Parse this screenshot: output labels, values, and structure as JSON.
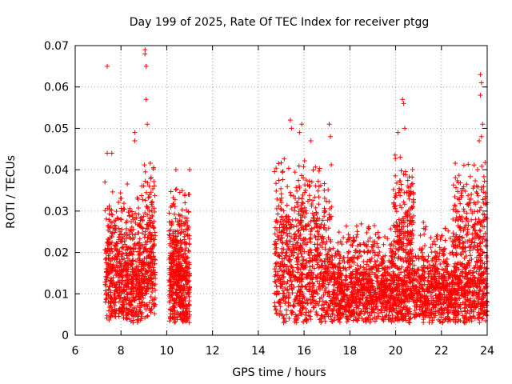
{
  "chart_data": {
    "type": "scatter",
    "title": "Day 199 of 2025, Rate Of TEC Index for receiver ptgg",
    "xlabel": "GPS time / hours",
    "ylabel": "ROTI / TECUs",
    "xlim": [
      6,
      24
    ],
    "ylim": [
      0,
      0.07
    ],
    "xticks": [
      6,
      8,
      10,
      12,
      14,
      16,
      18,
      20,
      22,
      24
    ],
    "yticks": [
      0,
      0.01,
      0.02,
      0.03,
      0.04,
      0.05,
      0.06,
      0.07
    ],
    "xtick_labels": [
      "6",
      "8",
      "10",
      "12",
      "14",
      "16",
      "18",
      "20",
      "22",
      "24"
    ],
    "ytick_labels": [
      "0",
      "0.01",
      "0.02",
      "0.03",
      "0.04",
      "0.05",
      "0.06",
      "0.07"
    ],
    "grid": true,
    "marker": "+",
    "series": [
      {
        "name": "ROTI",
        "color": "#ff0000",
        "clusters": [
          {
            "x_range": [
              7.3,
              8.9
            ],
            "y_range": [
              0.003,
              0.038
            ],
            "density": 650
          },
          {
            "x_range": [
              8.9,
              9.5
            ],
            "y_range": [
              0.004,
              0.045
            ],
            "density": 260
          },
          {
            "x_range": [
              10.1,
              11.0
            ],
            "y_range": [
              0.003,
              0.037
            ],
            "density": 520
          },
          {
            "x_range": [
              14.7,
              17.2
            ],
            "y_range": [
              0.003,
              0.045
            ],
            "density": 850
          },
          {
            "x_range": [
              17.2,
              24.0
            ],
            "y_range": [
              0.003,
              0.028
            ],
            "density": 2200
          },
          {
            "x_range": [
              19.9,
              20.8
            ],
            "y_range": [
              0.02,
              0.045
            ],
            "density": 140
          },
          {
            "x_range": [
              22.5,
              24.0
            ],
            "y_range": [
              0.02,
              0.045
            ],
            "density": 160
          }
        ],
        "notable_points": [
          {
            "x": 7.4,
            "y": 0.065
          },
          {
            "x": 7.4,
            "y": 0.044
          },
          {
            "x": 7.6,
            "y": 0.044
          },
          {
            "x": 7.3,
            "y": 0.037
          },
          {
            "x": 8.6,
            "y": 0.049
          },
          {
            "x": 8.6,
            "y": 0.047
          },
          {
            "x": 9.05,
            "y": 0.069
          },
          {
            "x": 9.05,
            "y": 0.068
          },
          {
            "x": 9.1,
            "y": 0.065
          },
          {
            "x": 9.1,
            "y": 0.057
          },
          {
            "x": 9.15,
            "y": 0.051
          },
          {
            "x": 10.4,
            "y": 0.04
          },
          {
            "x": 11.0,
            "y": 0.04
          },
          {
            "x": 15.4,
            "y": 0.052
          },
          {
            "x": 15.45,
            "y": 0.05
          },
          {
            "x": 15.9,
            "y": 0.051
          },
          {
            "x": 15.8,
            "y": 0.049
          },
          {
            "x": 16.3,
            "y": 0.047
          },
          {
            "x": 17.1,
            "y": 0.051
          },
          {
            "x": 17.15,
            "y": 0.048
          },
          {
            "x": 20.3,
            "y": 0.057
          },
          {
            "x": 20.35,
            "y": 0.056
          },
          {
            "x": 20.4,
            "y": 0.05
          },
          {
            "x": 20.1,
            "y": 0.049
          },
          {
            "x": 20.2,
            "y": 0.043
          },
          {
            "x": 23.7,
            "y": 0.063
          },
          {
            "x": 23.75,
            "y": 0.061
          },
          {
            "x": 23.7,
            "y": 0.058
          },
          {
            "x": 23.8,
            "y": 0.051
          },
          {
            "x": 23.75,
            "y": 0.048
          },
          {
            "x": 23.65,
            "y": 0.047
          }
        ]
      }
    ]
  }
}
